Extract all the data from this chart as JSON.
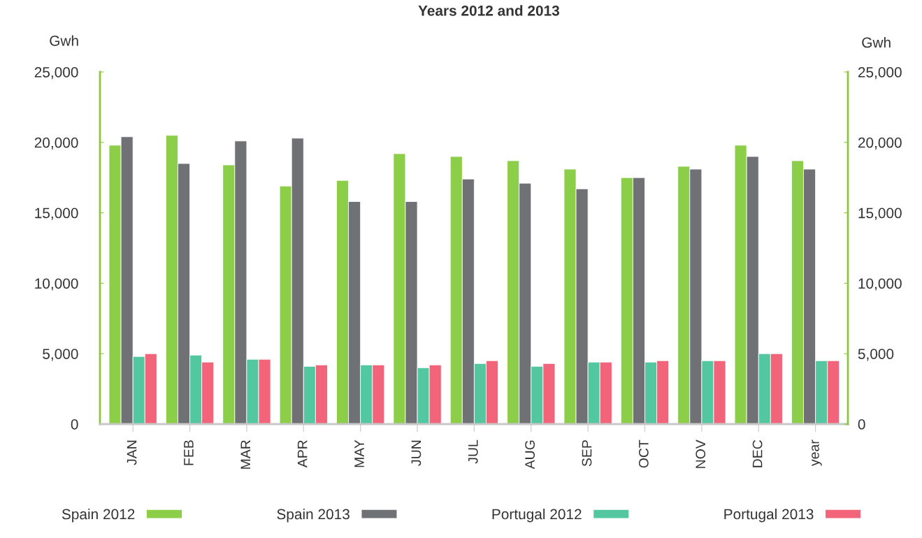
{
  "chart_data": {
    "type": "bar",
    "title": "Years 2012 and 2013",
    "ylabel": "Gwh",
    "y2label": "Gwh",
    "categories": [
      "JAN",
      "FEB",
      "MAR",
      "APR",
      "MAY",
      "JUN",
      "JUL",
      "AUG",
      "SEP",
      "OCT",
      "NOV",
      "DEC",
      "year"
    ],
    "series": [
      {
        "name": "Spain 2012",
        "color": "#8cce48",
        "values": [
          19800,
          20500,
          18400,
          16900,
          17300,
          19200,
          19000,
          18700,
          18100,
          17500,
          18300,
          19800,
          18700
        ]
      },
      {
        "name": "Spain 2013",
        "color": "#707175",
        "values": [
          20400,
          18500,
          20100,
          20300,
          15800,
          15800,
          17400,
          17100,
          16700,
          17500,
          18100,
          19000,
          18100
        ]
      },
      {
        "name": "Portugal 2012",
        "color": "#52c7a0",
        "values": [
          4800,
          4900,
          4600,
          4100,
          4200,
          4000,
          4300,
          4100,
          4400,
          4400,
          4500,
          5000,
          4500
        ]
      },
      {
        "name": "Portugal 2013",
        "color": "#f2647a",
        "values": [
          5000,
          4400,
          4600,
          4200,
          4200,
          4200,
          4500,
          4300,
          4400,
          4500,
          4500,
          5000,
          4500
        ]
      }
    ],
    "ylim": [
      0,
      25000
    ],
    "yticks": [
      0,
      {
        "value": 5000,
        "label": "5,000"
      },
      {
        "value": 10000,
        "label": "10,000"
      },
      {
        "value": 15000,
        "label": "15,000"
      },
      {
        "value": 20000,
        "label": "20,000"
      },
      {
        "value": 25000,
        "label": "25,000"
      }
    ],
    "y2lim": [
      0,
      25000
    ],
    "y2ticks": [
      0,
      {
        "value": 5000,
        "label": "5,000"
      },
      {
        "value": 10000,
        "label": "10,000"
      },
      {
        "value": 15000,
        "label": "15,000"
      },
      {
        "value": 20000,
        "label": "20,000"
      },
      {
        "value": 25000,
        "label": "25,000"
      }
    ],
    "legend": "bottom"
  }
}
